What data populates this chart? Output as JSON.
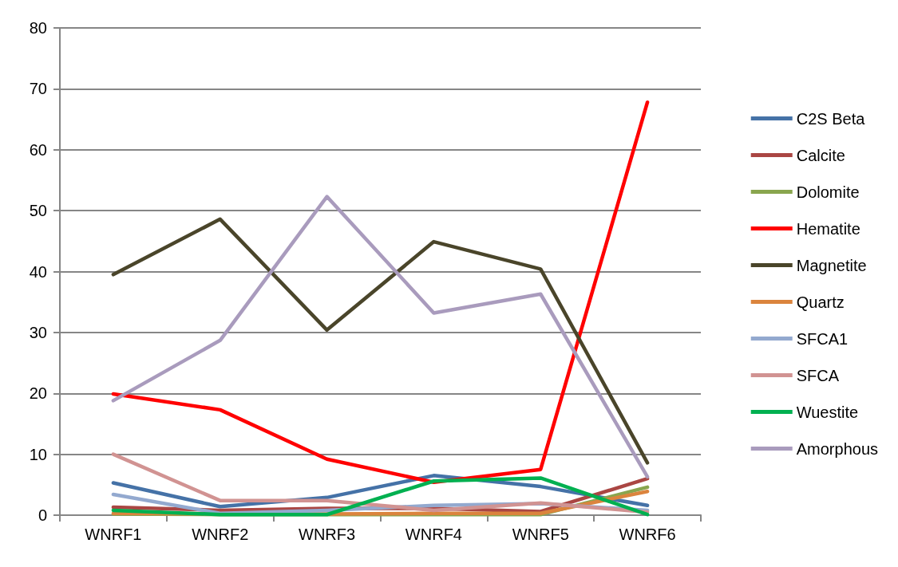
{
  "chart_data": {
    "type": "line",
    "categories": [
      "WNRF1",
      "WNRF2",
      "WNRF3",
      "WNRF4",
      "WNRF5",
      "WNRF6"
    ],
    "ylim": [
      0,
      80
    ],
    "yticks": [
      0,
      10,
      20,
      30,
      40,
      50,
      60,
      70,
      80
    ],
    "grid": "y",
    "legend": "right",
    "marker": "none",
    "line_style": "solid",
    "series": [
      {
        "name": "C2S Beta",
        "color": "#4572a7",
        "values": [
          5.3,
          1.4,
          2.9,
          6.5,
          4.7,
          1.6
        ]
      },
      {
        "name": "Calcite",
        "color": "#aa4643",
        "values": [
          1.3,
          0.8,
          1.1,
          1.1,
          0.6,
          6.0
        ]
      },
      {
        "name": "Dolomite",
        "color": "#89a54e",
        "values": [
          0.2,
          0.1,
          0.1,
          0.1,
          0.1,
          4.6
        ]
      },
      {
        "name": "Hematite",
        "color": "#ff0000",
        "values": [
          19.9,
          17.3,
          9.2,
          5.4,
          7.5,
          67.8
        ]
      },
      {
        "name": "Magnetite",
        "color": "#4a452a",
        "values": [
          39.5,
          48.6,
          30.4,
          44.9,
          40.4,
          8.6
        ]
      },
      {
        "name": "Quartz",
        "color": "#db843d",
        "values": [
          0.3,
          0.2,
          0.2,
          0.3,
          0.3,
          3.9
        ]
      },
      {
        "name": "SFCA1",
        "color": "#93a9cf",
        "values": [
          3.4,
          0.3,
          0.8,
          1.6,
          1.9,
          0.8
        ]
      },
      {
        "name": "SFCA",
        "color": "#d19392",
        "values": [
          10.0,
          2.4,
          2.4,
          0.8,
          2.0,
          0.5
        ]
      },
      {
        "name": "Wuestite",
        "color": "#00b050",
        "values": [
          0.8,
          0.1,
          0.1,
          5.6,
          6.1,
          0.1
        ]
      },
      {
        "name": "Amorphous",
        "color": "#a99bbd",
        "values": [
          18.8,
          28.7,
          52.3,
          33.2,
          36.3,
          6.3
        ]
      }
    ]
  }
}
